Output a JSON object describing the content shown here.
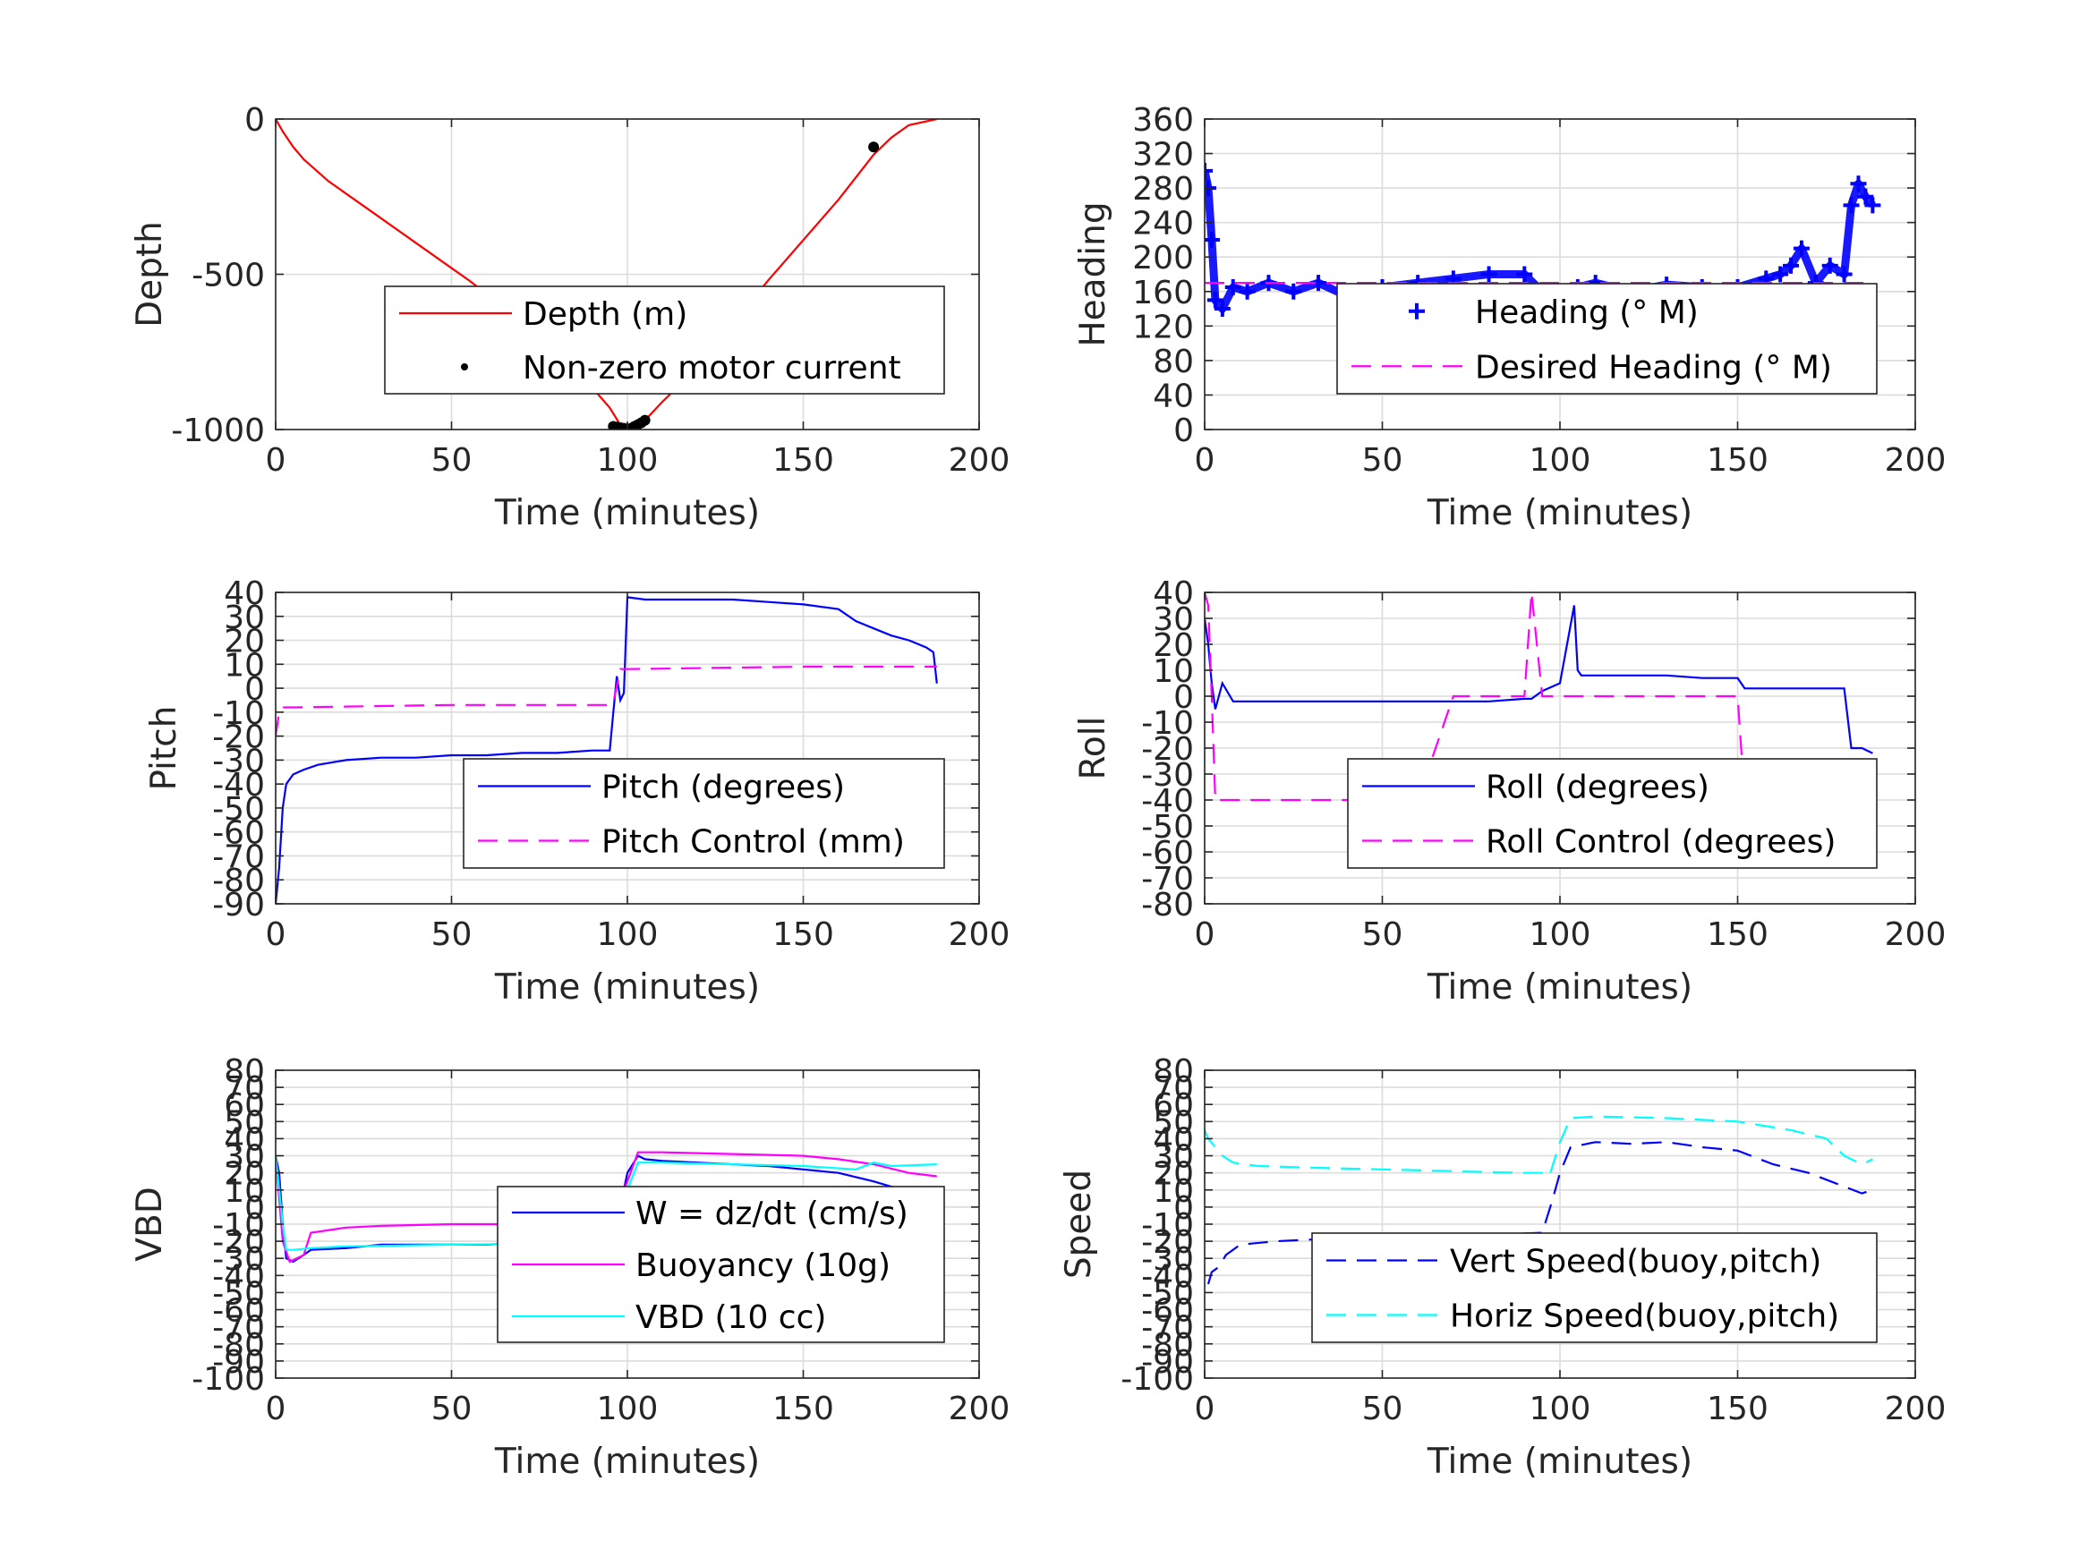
{
  "figure": {
    "background": "#ffffff",
    "axis_color": "#262626",
    "grid_color": "#dcdcdc"
  },
  "chart_data": [
    {
      "id": "depth",
      "type": "line",
      "xlabel": "Time (minutes)",
      "ylabel": "Depth",
      "xlim": [
        0,
        200
      ],
      "ylim": [
        -1000,
        0
      ],
      "xticks": [
        0,
        50,
        100,
        150,
        200
      ],
      "yticks": [
        -1000,
        -500,
        0
      ],
      "grid": true,
      "legend_position": "center-right",
      "series": [
        {
          "name": "Depth (m)",
          "color": "#ff0000",
          "style": "solid",
          "x": [
            0,
            2,
            5,
            8,
            15,
            25,
            40,
            55,
            70,
            85,
            95,
            98,
            100,
            102,
            105,
            110,
            120,
            130,
            140,
            150,
            160,
            170,
            175,
            180,
            188
          ],
          "y": [
            0,
            -40,
            -90,
            -130,
            -200,
            -280,
            -400,
            -520,
            -650,
            -800,
            -930,
            -985,
            -1000,
            -990,
            -970,
            -910,
            -800,
            -660,
            -520,
            -390,
            -260,
            -115,
            -60,
            -20,
            0
          ]
        },
        {
          "name": "Non-zero motor current",
          "color": "#000000",
          "style": "marker-dot",
          "x": [
            96,
            97,
            98,
            99,
            100,
            101,
            102,
            103,
            104,
            105,
            170
          ],
          "y": [
            -990,
            -992,
            -994,
            -996,
            -998,
            -996,
            -990,
            -984,
            -978,
            -970,
            -90
          ]
        }
      ]
    },
    {
      "id": "heading",
      "type": "scatter",
      "xlabel": "Time (minutes)",
      "ylabel": "Heading",
      "xlim": [
        0,
        200
      ],
      "ylim": [
        0,
        360
      ],
      "xticks": [
        0,
        50,
        100,
        150,
        200
      ],
      "yticks": [
        0,
        40,
        80,
        120,
        160,
        200,
        240,
        280,
        320,
        360
      ],
      "grid": true,
      "legend_position": "center-right",
      "series": [
        {
          "name": "Heading (° M)",
          "color": "#0000ff",
          "style": "marker-plus",
          "x": [
            0,
            1,
            2,
            3,
            5,
            8,
            12,
            18,
            25,
            32,
            40,
            50,
            60,
            70,
            80,
            90,
            95,
            98,
            100,
            102,
            105,
            110,
            120,
            130,
            140,
            150,
            158,
            162,
            165,
            168,
            172,
            176,
            180,
            182,
            184,
            186,
            188
          ],
          "y": [
            300,
            280,
            220,
            150,
            140,
            165,
            160,
            170,
            160,
            170,
            155,
            165,
            170,
            175,
            180,
            180,
            160,
            130,
            125,
            140,
            165,
            170,
            160,
            168,
            165,
            165,
            175,
            180,
            190,
            210,
            170,
            190,
            180,
            260,
            285,
            270,
            260
          ]
        },
        {
          "name": "Desired Heading (° M)",
          "color": "#ff00ff",
          "style": "dashed",
          "x": [
            0,
            188
          ],
          "y": [
            170,
            170
          ]
        }
      ]
    },
    {
      "id": "pitch",
      "type": "line",
      "xlabel": "Time (minutes)",
      "ylabel": "Pitch",
      "xlim": [
        0,
        200
      ],
      "ylim": [
        -90,
        40
      ],
      "xticks": [
        0,
        50,
        100,
        150,
        200
      ],
      "yticks": [
        -90,
        -80,
        -70,
        -60,
        -50,
        -40,
        -30,
        -20,
        -10,
        0,
        10,
        20,
        30,
        40
      ],
      "grid": true,
      "legend_position": "center-right",
      "series": [
        {
          "name": "Pitch (degrees)",
          "color": "#0000ff",
          "style": "solid",
          "x": [
            0,
            1,
            2,
            3,
            5,
            8,
            12,
            20,
            30,
            40,
            50,
            60,
            70,
            80,
            90,
            95,
            96,
            97,
            98,
            99,
            100,
            105,
            110,
            120,
            130,
            140,
            150,
            160,
            165,
            170,
            175,
            180,
            185,
            187,
            188
          ],
          "y": [
            -90,
            -75,
            -50,
            -40,
            -36,
            -34,
            -32,
            -30,
            -29,
            -29,
            -28,
            -28,
            -27,
            -27,
            -26,
            -26,
            -10,
            5,
            -5,
            -2,
            38,
            37,
            37,
            37,
            37,
            36,
            35,
            33,
            28,
            25,
            22,
            20,
            17,
            15,
            2
          ]
        },
        {
          "name": "Pitch Control (mm)",
          "color": "#ff00ff",
          "style": "dashed",
          "x": [
            0,
            1,
            2,
            5,
            50,
            95,
            96,
            98,
            100,
            150,
            188
          ],
          "y": [
            -20,
            -10,
            -8,
            -8,
            -7,
            -7,
            -6,
            8,
            8,
            9,
            9
          ]
        }
      ]
    },
    {
      "id": "roll",
      "type": "line",
      "xlabel": "Time (minutes)",
      "ylabel": "Roll",
      "xlim": [
        0,
        200
      ],
      "ylim": [
        -80,
        40
      ],
      "xticks": [
        0,
        50,
        100,
        150,
        200
      ],
      "yticks": [
        -80,
        -70,
        -60,
        -50,
        -40,
        -30,
        -20,
        -10,
        0,
        10,
        20,
        30,
        40
      ],
      "grid": true,
      "legend_position": "center-right",
      "series": [
        {
          "name": "Roll (degrees)",
          "color": "#0000ff",
          "style": "solid",
          "x": [
            0,
            1,
            2,
            3,
            5,
            8,
            10,
            20,
            30,
            40,
            50,
            60,
            70,
            80,
            90,
            92,
            95,
            100,
            104,
            105,
            106,
            110,
            120,
            130,
            140,
            150,
            152,
            155,
            160,
            170,
            175,
            180,
            182,
            185,
            188
          ],
          "y": [
            30,
            20,
            5,
            -5,
            5,
            -2,
            -2,
            -2,
            -2,
            -2,
            -2,
            -2,
            -2,
            -2,
            -1,
            -1,
            2,
            5,
            35,
            10,
            8,
            8,
            8,
            8,
            7,
            7,
            3,
            3,
            3,
            3,
            3,
            3,
            -20,
            -20,
            -22
          ]
        },
        {
          "name": "Roll Control (degrees)",
          "color": "#ff00ff",
          "style": "dashed",
          "x": [
            0,
            1,
            2,
            3,
            5,
            10,
            20,
            30,
            40,
            50,
            60,
            70,
            80,
            90,
            92,
            95,
            100,
            105,
            110,
            120,
            130,
            140,
            150,
            152,
            160,
            170,
            180,
            188
          ],
          "y": [
            40,
            35,
            0,
            -40,
            -40,
            -40,
            -40,
            -40,
            -40,
            -40,
            -40,
            0,
            0,
            0,
            40,
            0,
            0,
            0,
            0,
            0,
            0,
            0,
            0,
            -40,
            -40,
            -40,
            -40,
            -40
          ]
        }
      ]
    },
    {
      "id": "vbd",
      "type": "line",
      "xlabel": "Time (minutes)",
      "ylabel": "VBD",
      "xlim": [
        0,
        200
      ],
      "ylim": [
        -100,
        80
      ],
      "xticks": [
        0,
        50,
        100,
        150,
        200
      ],
      "yticks": [
        -100,
        -90,
        -80,
        -70,
        -60,
        -50,
        -40,
        -30,
        -20,
        -10,
        0,
        10,
        20,
        30,
        40,
        50,
        60,
        70,
        80
      ],
      "grid": true,
      "legend_position": "center-right",
      "series": [
        {
          "name": "W = dz/dt (cm/s)",
          "color": "#0000ff",
          "style": "solid",
          "x": [
            0,
            1,
            2,
            3,
            5,
            8,
            10,
            20,
            30,
            40,
            50,
            60,
            70,
            80,
            90,
            95,
            96,
            98,
            100,
            103,
            105,
            110,
            120,
            130,
            140,
            150,
            160,
            170,
            175,
            180,
            185,
            188
          ],
          "y": [
            30,
            20,
            -10,
            -30,
            -32,
            -28,
            -25,
            -24,
            -22,
            -22,
            -22,
            -22,
            -21,
            -21,
            -20,
            -20,
            -18,
            0,
            20,
            30,
            28,
            27,
            26,
            25,
            24,
            22,
            20,
            15,
            12,
            10,
            8,
            5
          ]
        },
        {
          "name": "Buoyancy (10g)",
          "color": "#ff00ff",
          "style": "solid",
          "x": [
            0,
            2,
            4,
            6,
            8,
            10,
            20,
            30,
            50,
            70,
            95,
            100,
            103,
            110,
            130,
            150,
            160,
            170,
            180,
            188
          ],
          "y": [
            30,
            -20,
            -32,
            -30,
            -28,
            -15,
            -12,
            -11,
            -10,
            -10,
            -9,
            15,
            32,
            32,
            31,
            30,
            28,
            25,
            20,
            18
          ]
        },
        {
          "name": "VBD (10 cc)",
          "color": "#00ffff",
          "style": "solid",
          "x": [
            0,
            2,
            3,
            5,
            10,
            20,
            50,
            95,
            100,
            103,
            110,
            130,
            150,
            165,
            170,
            175,
            188
          ],
          "y": [
            30,
            -10,
            -25,
            -25,
            -24,
            -23,
            -22,
            -21,
            10,
            26,
            26,
            25,
            24,
            22,
            26,
            24,
            25
          ]
        }
      ]
    },
    {
      "id": "speed",
      "type": "line",
      "xlabel": "Time (minutes)",
      "ylabel": "Speed",
      "xlim": [
        0,
        200
      ],
      "ylim": [
        -100,
        80
      ],
      "xticks": [
        0,
        50,
        100,
        150,
        200
      ],
      "yticks": [
        -100,
        -90,
        -80,
        -70,
        -60,
        -50,
        -40,
        -30,
        -20,
        -10,
        0,
        10,
        20,
        30,
        40,
        50,
        60,
        70,
        80
      ],
      "grid": true,
      "legend_position": "center-right",
      "series": [
        {
          "name": "Vert Speed(buoy,pitch)",
          "color": "#0000ff",
          "style": "dashed",
          "x": [
            1,
            2,
            4,
            6,
            10,
            20,
            30,
            50,
            70,
            95,
            98,
            100,
            103,
            110,
            120,
            130,
            140,
            150,
            160,
            170,
            180,
            185,
            188
          ],
          "y": [
            -45,
            -38,
            -35,
            -28,
            -22,
            -20,
            -19,
            -18,
            -17,
            -15,
            5,
            20,
            35,
            38,
            37,
            38,
            35,
            33,
            25,
            20,
            12,
            8,
            10
          ]
        },
        {
          "name": "Horiz Speed(buoy,pitch)",
          "color": "#00ffff",
          "style": "dashed",
          "x": [
            0,
            1,
            3,
            5,
            8,
            15,
            30,
            50,
            70,
            90,
            95,
            97,
            100,
            103,
            110,
            130,
            150,
            165,
            175,
            180,
            185,
            188
          ],
          "y": [
            45,
            40,
            35,
            30,
            26,
            24,
            23,
            22,
            21,
            20,
            20,
            18,
            38,
            52,
            53,
            52,
            50,
            45,
            40,
            30,
            25,
            28
          ]
        }
      ]
    }
  ]
}
